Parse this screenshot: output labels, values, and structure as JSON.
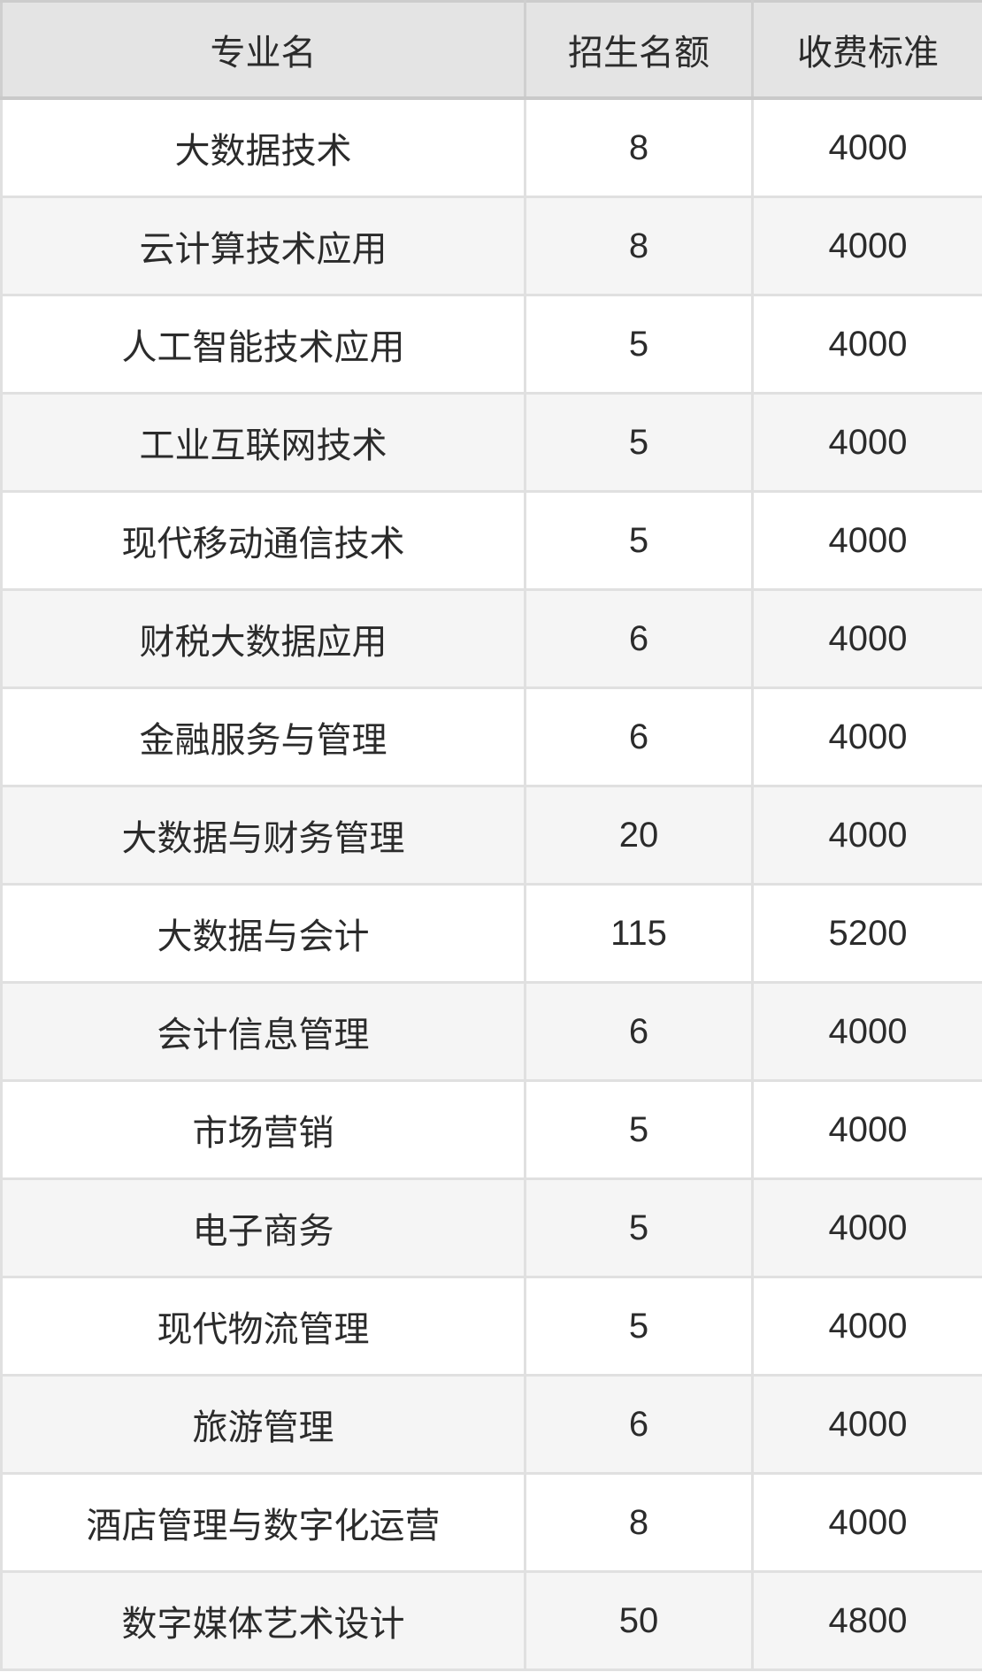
{
  "colors": {
    "page_bg": "#ffffff",
    "header_bg": "#e4e4e4",
    "row_bg": "#ffffff",
    "row_alt_bg": "#f5f5f5",
    "cell_border": "#e0e0e0",
    "header_border": "#c9c9c9",
    "text": "#2b2b2b"
  },
  "table": {
    "columns": [
      {
        "key": "major",
        "label": "专业名"
      },
      {
        "key": "quota",
        "label": "招生名额"
      },
      {
        "key": "fee",
        "label": "收费标准"
      }
    ],
    "rows": [
      {
        "major": "大数据技术",
        "quota": "8",
        "fee": "4000"
      },
      {
        "major": "云计算技术应用",
        "quota": "8",
        "fee": "4000"
      },
      {
        "major": "人工智能技术应用",
        "quota": "5",
        "fee": "4000"
      },
      {
        "major": "工业互联网技术",
        "quota": "5",
        "fee": "4000"
      },
      {
        "major": "现代移动通信技术",
        "quota": "5",
        "fee": "4000"
      },
      {
        "major": "财税大数据应用",
        "quota": "6",
        "fee": "4000"
      },
      {
        "major": "金融服务与管理",
        "quota": "6",
        "fee": "4000"
      },
      {
        "major": "大数据与财务管理",
        "quota": "20",
        "fee": "4000"
      },
      {
        "major": "大数据与会计",
        "quota": "115",
        "fee": "5200"
      },
      {
        "major": "会计信息管理",
        "quota": "6",
        "fee": "4000"
      },
      {
        "major": "市场营销",
        "quota": "5",
        "fee": "4000"
      },
      {
        "major": "电子商务",
        "quota": "5",
        "fee": "4000"
      },
      {
        "major": "现代物流管理",
        "quota": "5",
        "fee": "4000"
      },
      {
        "major": "旅游管理",
        "quota": "6",
        "fee": "4000"
      },
      {
        "major": "酒店管理与数字化运营",
        "quota": "8",
        "fee": "4000"
      },
      {
        "major": "数字媒体艺术设计",
        "quota": "50",
        "fee": "4800"
      }
    ]
  },
  "chart_data": {
    "type": "table",
    "title": "",
    "columns": [
      "专业名",
      "招生名额",
      "收费标准"
    ],
    "rows": [
      [
        "大数据技术",
        8,
        4000
      ],
      [
        "云计算技术应用",
        8,
        4000
      ],
      [
        "人工智能技术应用",
        5,
        4000
      ],
      [
        "工业互联网技术",
        5,
        4000
      ],
      [
        "现代移动通信技术",
        5,
        4000
      ],
      [
        "财税大数据应用",
        6,
        4000
      ],
      [
        "金融服务与管理",
        6,
        4000
      ],
      [
        "大数据与财务管理",
        20,
        4000
      ],
      [
        "大数据与会计",
        115,
        5200
      ],
      [
        "会计信息管理",
        6,
        4000
      ],
      [
        "市场营销",
        5,
        4000
      ],
      [
        "电子商务",
        5,
        4000
      ],
      [
        "现代物流管理",
        5,
        4000
      ],
      [
        "旅游管理",
        6,
        4000
      ],
      [
        "酒店管理与数字化运营",
        8,
        4000
      ],
      [
        "数字媒体艺术设计",
        50,
        4800
      ]
    ],
    "layout_hints": {
      "zebra_striping": true,
      "header_background": "#e4e4e4",
      "all_cells_centered": true
    }
  }
}
